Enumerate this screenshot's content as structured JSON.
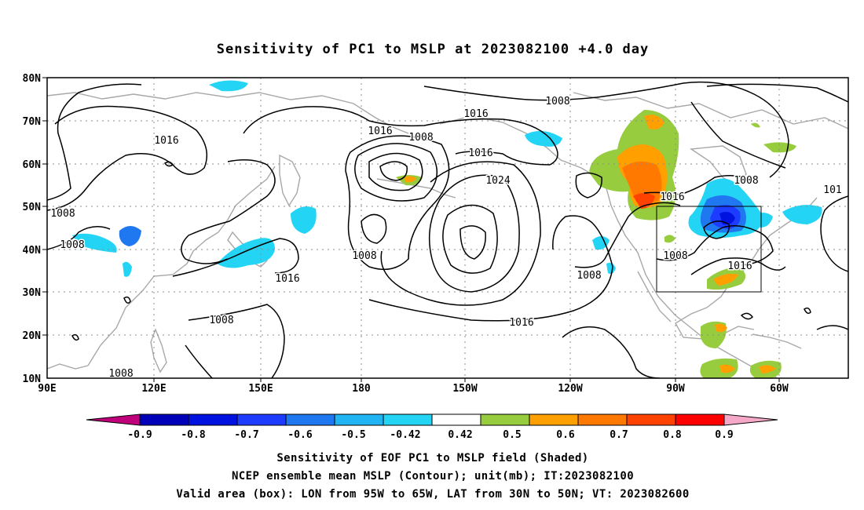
{
  "title": "Sensitivity of PC1 to MSLP at 2023082100 +4.0 day",
  "map": {
    "lon_labels": [
      "90E",
      "120E",
      "150E",
      "180",
      "150W",
      "120W",
      "90W",
      "60W"
    ],
    "lat_labels": [
      "80N",
      "70N",
      "60N",
      "50N",
      "40N",
      "30N",
      "20N",
      "10N"
    ],
    "lon_range": [
      90,
      315
    ],
    "lat_range": [
      10,
      80
    ],
    "grid": "dotted"
  },
  "contour_labels": [
    "1008",
    "1016",
    "1016",
    "1008",
    "1016",
    "1024",
    "1008",
    "1008",
    "1008",
    "1016",
    "1008",
    "1016",
    "1008",
    "1016",
    "1008",
    "1016",
    "1008",
    "1008",
    "1008",
    "101"
  ],
  "valid_box": {
    "lon": [
      -95,
      -65
    ],
    "lat": [
      30,
      50
    ]
  },
  "colorbar": {
    "labels": [
      "-0.9",
      "-0.8",
      "-0.7",
      "-0.6",
      "-0.5",
      "-0.42",
      "0.42",
      "0.5",
      "0.6",
      "0.7",
      "0.8",
      "0.9"
    ],
    "colors": [
      "#c0007a",
      "#0000b8",
      "#0012e0",
      "#1e3cff",
      "#1f78f0",
      "#21b4f2",
      "#24d4f5",
      "#ffffff",
      "#97cc3f",
      "#ffa000",
      "#ff7800",
      "#ff4200",
      "#ff0000",
      "#f5a8c8"
    ]
  },
  "captions": [
    "Sensitivity of EOF PC1 to MSLP field (Shaded)",
    "NCEP ensemble mean MSLP (Contour); unit(mb); IT:2023082100",
    "Valid area (box): LON from 95W to 65W, LAT from 30N to 50N; VT: 2023082600"
  ]
}
